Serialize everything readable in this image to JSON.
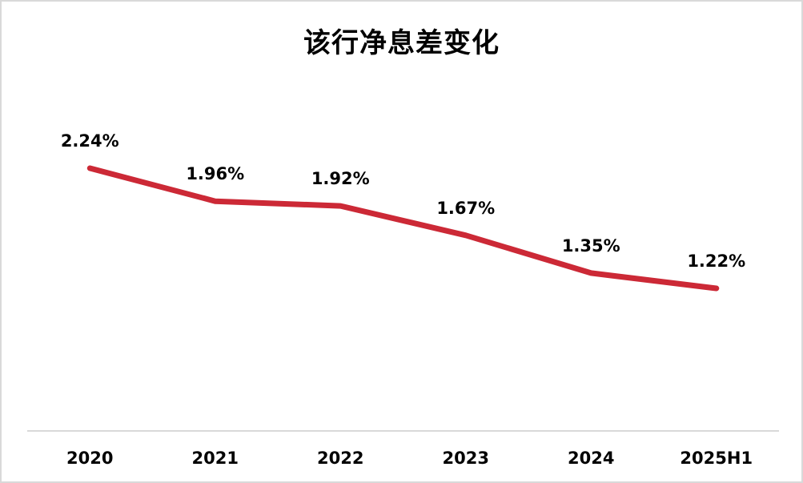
{
  "title": "该行净息差变化",
  "colors": {
    "line": "#CC2936",
    "axis": "#D9D9D9",
    "text": "#000000",
    "card_border": "#D9D9D9",
    "background": "#FFFFFF"
  },
  "chart_data": {
    "type": "line",
    "title": "该行净息差变化",
    "categories": [
      "2020",
      "2021",
      "2022",
      "2023",
      "2024",
      "2025H1"
    ],
    "values": [
      2.24,
      1.96,
      1.92,
      1.67,
      1.35,
      1.22
    ],
    "data_labels": [
      "2.24%",
      "1.96%",
      "1.92%",
      "1.67%",
      "1.35%",
      "1.22%"
    ],
    "value_suffix": "%",
    "xlabel": "",
    "ylabel": "",
    "legend": "none",
    "grid": false,
    "y_axis_visible": false,
    "x_axis_line": true,
    "line_color": "#CC2936",
    "line_width": 7
  }
}
